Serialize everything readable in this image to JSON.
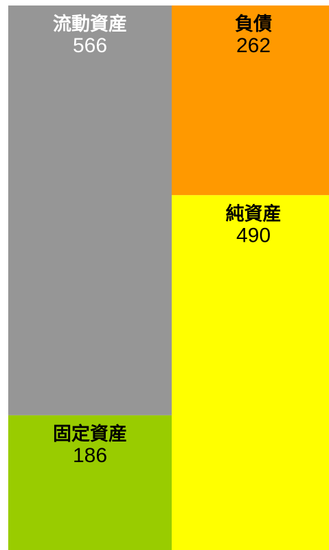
{
  "chart_data": {
    "type": "bar",
    "subtype": "balance-sheet",
    "unit": "",
    "columns": [
      {
        "key": "assets",
        "blocks": [
          {
            "label": "流動資産",
            "value": 566,
            "color": "#969696",
            "text_color": "#ffffff"
          },
          {
            "label": "固定資産",
            "value": 186,
            "color": "#99cc00",
            "text_color": "#000000"
          }
        ]
      },
      {
        "key": "liabilities_equity",
        "blocks": [
          {
            "label": "負債",
            "value": 262,
            "color": "#ff9900",
            "text_color": "#000000"
          },
          {
            "label": "純資産",
            "value": 490,
            "color": "#ffff00",
            "text_color": "#000000"
          }
        ]
      }
    ]
  }
}
